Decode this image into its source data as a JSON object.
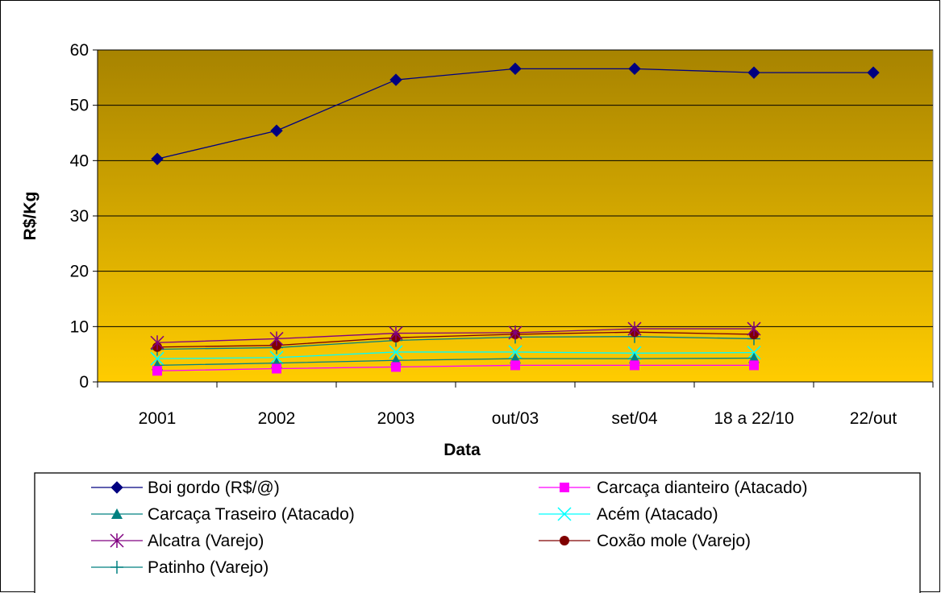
{
  "chart_data": {
    "type": "line",
    "categories": [
      "2001",
      "2002",
      "2003",
      "out/03",
      "set/04",
      "18 a 22/10",
      "22/out"
    ],
    "xlabel": "Data",
    "ylabel": "R$/Kg",
    "ylim": [
      0,
      60
    ],
    "yticks": [
      0,
      10,
      20,
      30,
      40,
      50,
      60
    ],
    "grid": true,
    "legend_position": "bottom",
    "plot_gradient": {
      "top": "#a78300",
      "bottom": "#ffcc00"
    },
    "series": [
      {
        "name": "Boi gordo (R$/@)",
        "color": "#000080",
        "marker": "diamond",
        "values": [
          40.3,
          45.4,
          54.6,
          56.6,
          56.6,
          55.9,
          55.9
        ]
      },
      {
        "name": "Carcaça dianteiro (Atacado)",
        "color": "#ff00ff",
        "marker": "square",
        "values": [
          2.0,
          2.4,
          2.7,
          3.0,
          3.0,
          3.0,
          null
        ]
      },
      {
        "name": "Carcaça Traseiro  (Atacado)",
        "color": "#008080",
        "marker": "triangle",
        "values": [
          3.0,
          3.4,
          3.9,
          4.2,
          4.2,
          4.3,
          null
        ]
      },
      {
        "name": "Acém (Atacado)",
        "color": "#00ffff",
        "marker": "x",
        "values": [
          4.2,
          4.4,
          5.4,
          5.4,
          5.2,
          5.3,
          null
        ]
      },
      {
        "name": "Alcatra (Varejo)",
        "color": "#800080",
        "marker": "star",
        "values": [
          7.1,
          7.8,
          8.8,
          8.9,
          9.6,
          9.6,
          null
        ]
      },
      {
        "name": "Coxão mole (Varejo)",
        "color": "#800000",
        "marker": "circle",
        "values": [
          6.3,
          6.6,
          8.0,
          8.6,
          9.0,
          8.6,
          null
        ]
      },
      {
        "name": "Patinho (Varejo)",
        "color": "#008080",
        "marker": "plus",
        "values": [
          5.9,
          6.2,
          7.5,
          8.1,
          8.2,
          7.8,
          null
        ]
      }
    ]
  }
}
